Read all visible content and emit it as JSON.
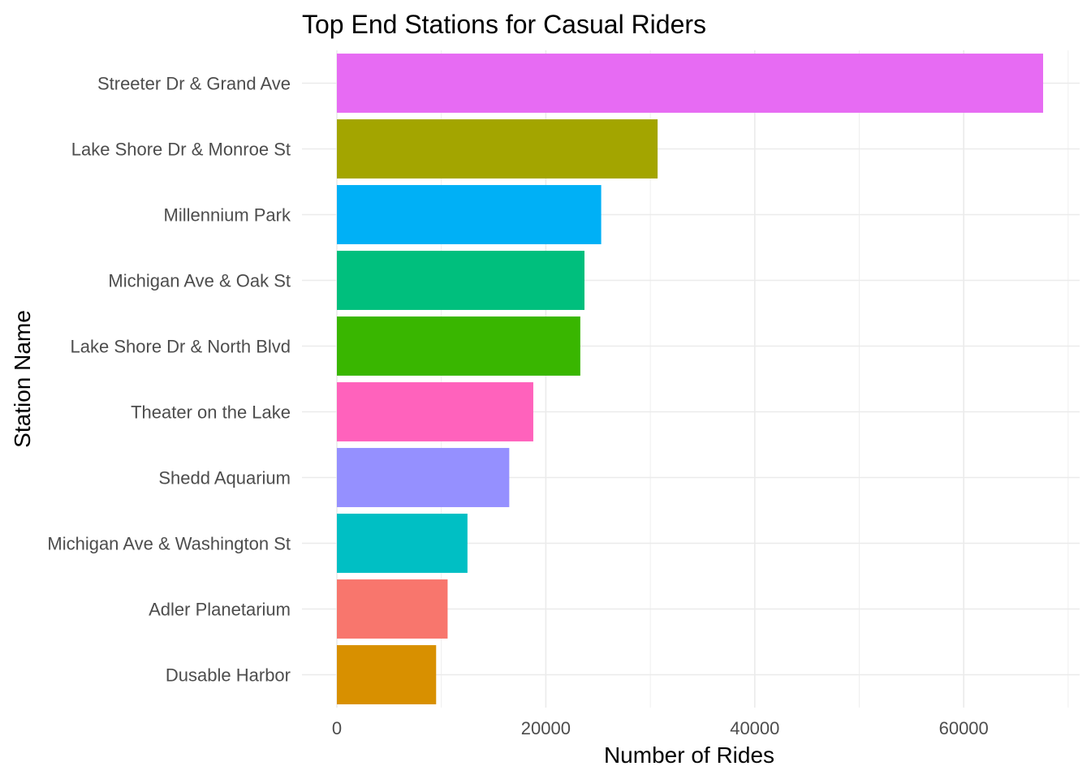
{
  "chart_data": {
    "type": "bar",
    "orientation": "horizontal",
    "title": "Top End Stations for Casual Riders",
    "xlabel": "Number of Rides",
    "ylabel": "Station Name",
    "categories": [
      "Streeter Dr & Grand Ave",
      "Lake Shore Dr & Monroe St",
      "Millennium Park",
      "Michigan Ave & Oak St",
      "Lake Shore Dr & North Blvd",
      "Theater on the Lake",
      "Shedd Aquarium",
      "Michigan Ave & Washington St",
      "Adler Planetarium",
      "Dusable Harbor"
    ],
    "values": [
      67600,
      30700,
      25300,
      23700,
      23300,
      18800,
      16500,
      12500,
      10600,
      9500
    ],
    "colors": [
      "#E76BF3",
      "#A3A500",
      "#00B0F6",
      "#00BF7D",
      "#39B600",
      "#FF62BC",
      "#9590FF",
      "#00BFC4",
      "#F8766D",
      "#D89000"
    ],
    "xlim": [
      0,
      70000
    ],
    "x_ticks": [
      0,
      20000,
      40000,
      60000
    ],
    "x_tick_labels": [
      "0",
      "20000",
      "40000",
      "60000"
    ],
    "grid": true,
    "legend": "none"
  }
}
